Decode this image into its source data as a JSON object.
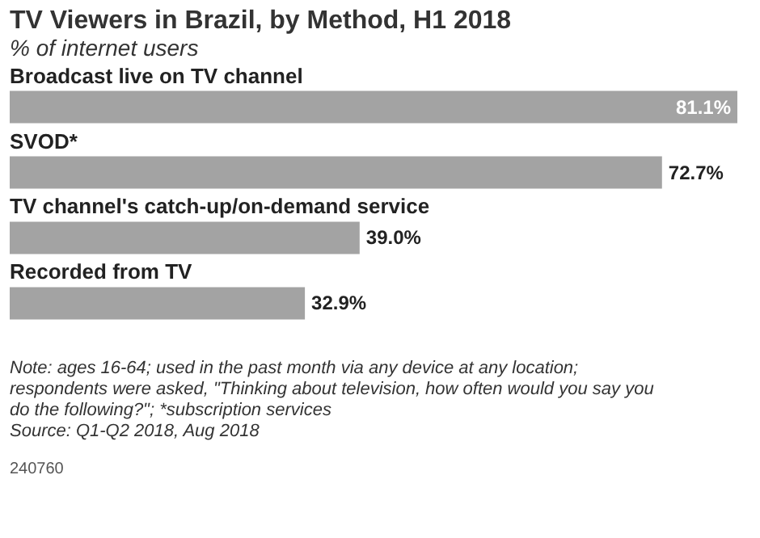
{
  "chart_data": {
    "type": "bar",
    "orientation": "horizontal",
    "title": "TV Viewers in Brazil, by Method, H1 2018",
    "subtitle": "% of internet users",
    "categories": [
      "Broadcast live on TV channel",
      "SVOD*",
      "TV channel's catch-up/on-demand service",
      "Recorded from TV"
    ],
    "values": [
      81.1,
      72.7,
      39.0,
      32.9
    ],
    "value_labels": [
      "81.1%",
      "72.7%",
      "39.0%",
      "32.9%"
    ],
    "color": "#a3a3a3",
    "annotations": [
      "Note: ages 16-64; used in the past month via any device at any location; respondents were asked, \"Thinking about television, how often would you say you do the following?\"; *subscription services",
      "Source: Q1-Q2 2018, Aug 2018",
      "240760"
    ]
  }
}
